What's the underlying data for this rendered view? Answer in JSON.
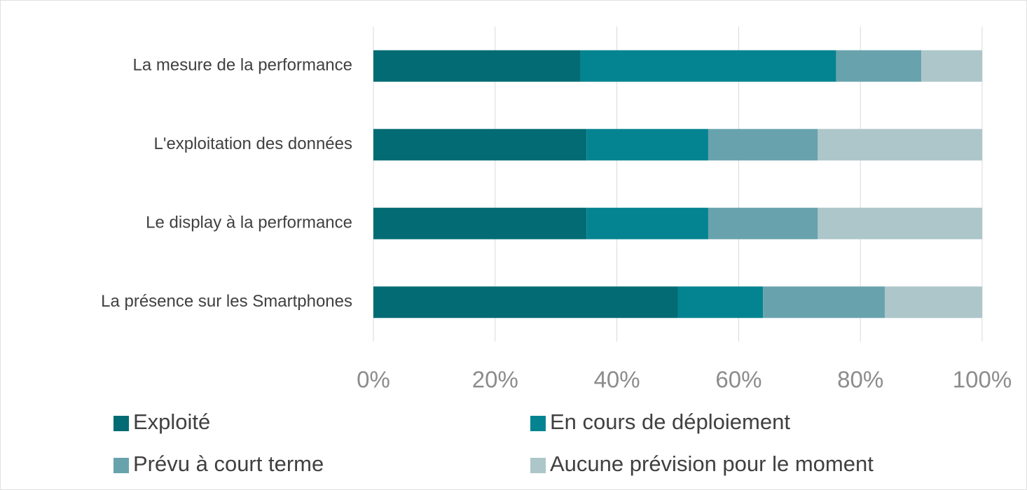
{
  "chart_data": {
    "type": "bar",
    "orientation": "horizontal",
    "stacked": true,
    "categories": [
      "La mesure de la performance",
      "L'exploitation des données",
      "Le display à la performance",
      "La présence sur les Smartphones"
    ],
    "series": [
      {
        "name": "Exploité",
        "color": "#036b73",
        "values": [
          34,
          35,
          35,
          50
        ]
      },
      {
        "name": "En cours de déploiement",
        "color": "#048490",
        "values": [
          42,
          20,
          20,
          14
        ]
      },
      {
        "name": "Prévu à court terme",
        "color": "#68a3ad",
        "values": [
          14,
          18,
          18,
          20
        ]
      },
      {
        "name": "Aucune prévision pour le moment",
        "color": "#adc6ca",
        "values": [
          10,
          27,
          27,
          16
        ]
      }
    ],
    "xlim": [
      0,
      100
    ],
    "xticks": [
      {
        "value": 0,
        "label": "0%"
      },
      {
        "value": 20,
        "label": "20%"
      },
      {
        "value": 40,
        "label": "40%"
      },
      {
        "value": 60,
        "label": "60%"
      },
      {
        "value": 80,
        "label": "80%"
      },
      {
        "value": 100,
        "label": "100%"
      }
    ],
    "grid": true,
    "legend": "bottom"
  }
}
